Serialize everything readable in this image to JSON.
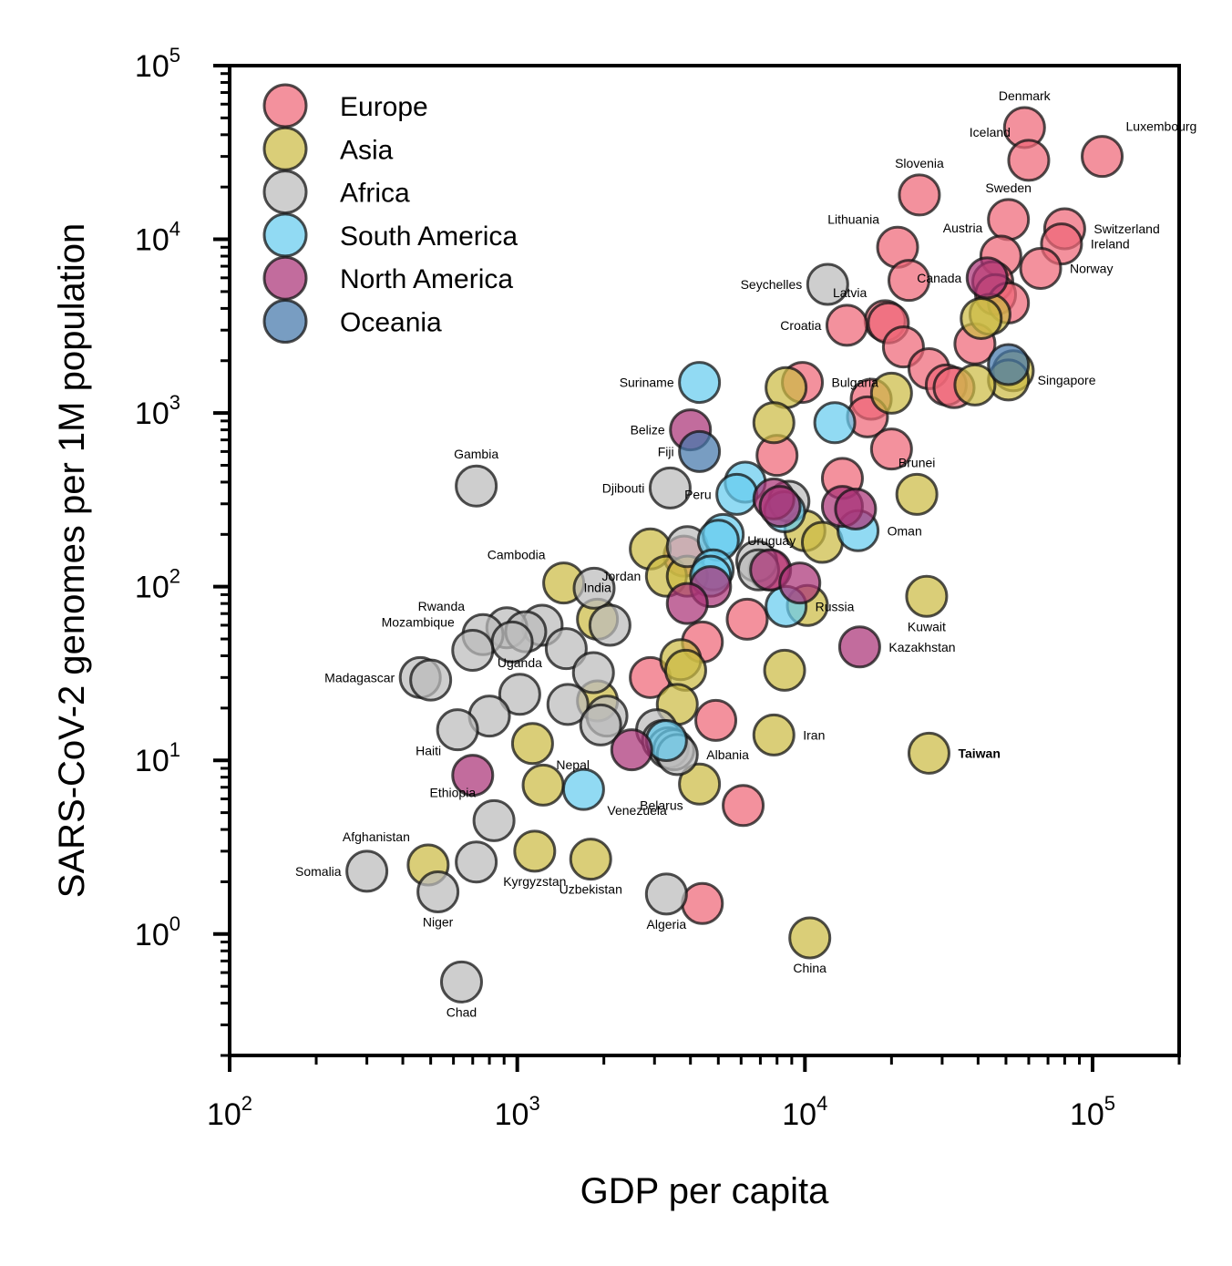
{
  "chart_data": {
    "type": "scatter",
    "xlabel": "GDP per capita",
    "ylabel": "SARS-CoV-2 genomes per 1M population",
    "xscale": "log",
    "yscale": "log",
    "xlim": [
      100,
      200000
    ],
    "ylim": [
      0.2,
      100000
    ],
    "x_major_ticks": [
      {
        "value": 100,
        "base": "10",
        "exp": "2"
      },
      {
        "value": 1000,
        "base": "10",
        "exp": "3"
      },
      {
        "value": 10000,
        "base": "10",
        "exp": "4"
      },
      {
        "value": 100000,
        "base": "10",
        "exp": "5"
      }
    ],
    "y_major_ticks": [
      {
        "value": 1,
        "base": "10",
        "exp": "0"
      },
      {
        "value": 10,
        "base": "10",
        "exp": "1"
      },
      {
        "value": 100,
        "base": "10",
        "exp": "2"
      },
      {
        "value": 1000,
        "base": "10",
        "exp": "3"
      },
      {
        "value": 10000,
        "base": "10",
        "exp": "4"
      },
      {
        "value": 100000,
        "base": "10",
        "exp": "5"
      }
    ],
    "grid": false,
    "legend_position": "top-left",
    "series": [
      {
        "name": "Europe",
        "color": "#EE6677",
        "points": [
          {
            "x": 58000,
            "y": 44000,
            "label": "Denmark",
            "label_pos": "above"
          },
          {
            "x": 108000,
            "y": 30000,
            "label": "Luxembourg",
            "label_pos": "upper-right"
          },
          {
            "x": 60000,
            "y": 28500,
            "label": "Iceland",
            "label_pos": "upper-left"
          },
          {
            "x": 25000,
            "y": 18000,
            "label": "Slovenia",
            "label_pos": "above"
          },
          {
            "x": 51000,
            "y": 13000,
            "label": "Sweden",
            "label_pos": "above"
          },
          {
            "x": 80000,
            "y": 11500,
            "label": "Switzerland",
            "label_pos": "right"
          },
          {
            "x": 78000,
            "y": 9400,
            "label": "Ireland",
            "label_pos": "right"
          },
          {
            "x": 21000,
            "y": 9000,
            "label": "Lithuania",
            "label_pos": "upper-left"
          },
          {
            "x": 48000,
            "y": 8000,
            "label": "Austria",
            "label_pos": "upper-left"
          },
          {
            "x": 66000,
            "y": 6800,
            "label": "Norway",
            "label_pos": "right"
          },
          {
            "x": 23000,
            "y": 5800
          },
          {
            "x": 45000,
            "y": 5700
          },
          {
            "x": 46000,
            "y": 4800
          },
          {
            "x": 51000,
            "y": 4300
          },
          {
            "x": 19000,
            "y": 3400,
            "label": "Latvia",
            "label_pos": "upper-left"
          },
          {
            "x": 19500,
            "y": 3300
          },
          {
            "x": 14000,
            "y": 3200,
            "label": "Croatia",
            "label_pos": "left"
          },
          {
            "x": 22000,
            "y": 2400
          },
          {
            "x": 39000,
            "y": 2500
          },
          {
            "x": 27000,
            "y": 1800
          },
          {
            "x": 31000,
            "y": 1450
          },
          {
            "x": 33000,
            "y": 1400
          },
          {
            "x": 9800,
            "y": 1500,
            "label": "Bulgaria",
            "label_pos": "right"
          },
          {
            "x": 17000,
            "y": 1200
          },
          {
            "x": 16500,
            "y": 950
          },
          {
            "x": 20000,
            "y": 620
          },
          {
            "x": 8000,
            "y": 570
          },
          {
            "x": 13500,
            "y": 420
          },
          {
            "x": 3800,
            "y": 150
          },
          {
            "x": 7500,
            "y": 125
          },
          {
            "x": 4400,
            "y": 48
          },
          {
            "x": 6300,
            "y": 65
          },
          {
            "x": 2900,
            "y": 30
          },
          {
            "x": 4900,
            "y": 17
          },
          {
            "x": 6100,
            "y": 5.5
          },
          {
            "x": 4400,
            "y": 1.5
          }
        ]
      },
      {
        "name": "Asia",
        "color": "#CCBB44",
        "points": [
          {
            "x": 44000,
            "y": 3700
          },
          {
            "x": 41000,
            "y": 3500
          },
          {
            "x": 53000,
            "y": 1750
          },
          {
            "x": 51000,
            "y": 1550,
            "label": "Singapore",
            "label_pos": "right"
          },
          {
            "x": 39000,
            "y": 1450
          },
          {
            "x": 8600,
            "y": 1400
          },
          {
            "x": 20000,
            "y": 1300
          },
          {
            "x": 7800,
            "y": 880
          },
          {
            "x": 24500,
            "y": 340,
            "label": "Brunei",
            "label_pos": "above"
          },
          {
            "x": 10000,
            "y": 210
          },
          {
            "x": 11500,
            "y": 180
          },
          {
            "x": 2900,
            "y": 165
          },
          {
            "x": 1450,
            "y": 105,
            "label": "Cambodia",
            "label_pos": "upper-left"
          },
          {
            "x": 3300,
            "y": 115,
            "label": "Jordan",
            "label_pos": "left"
          },
          {
            "x": 3900,
            "y": 115
          },
          {
            "x": 1900,
            "y": 65,
            "label": "India",
            "label_pos": "above"
          },
          {
            "x": 10200,
            "y": 78
          },
          {
            "x": 26500,
            "y": 88,
            "label": "Kuwait",
            "label_pos": "below"
          },
          {
            "x": 3700,
            "y": 38
          },
          {
            "x": 3850,
            "y": 33
          },
          {
            "x": 8500,
            "y": 33
          },
          {
            "x": 1900,
            "y": 22
          },
          {
            "x": 3600,
            "y": 21
          },
          {
            "x": 1130,
            "y": 12.5,
            "label": "Nepal",
            "label_pos": "lower-right"
          },
          {
            "x": 7800,
            "y": 14,
            "label": "Iran",
            "label_pos": "right"
          },
          {
            "x": 27000,
            "y": 11,
            "label": "Taiwan",
            "label_pos": "right",
            "bold": true
          },
          {
            "x": 1230,
            "y": 7.2
          },
          {
            "x": 4300,
            "y": 7.3,
            "label": "Belarus",
            "label_pos": "lower-left"
          },
          {
            "x": 490,
            "y": 2.5,
            "label": "Afghanistan",
            "label_pos": "upper-left"
          },
          {
            "x": 1150,
            "y": 3.0,
            "label": "Kyrgyzstan",
            "label_pos": "below"
          },
          {
            "x": 1800,
            "y": 2.7,
            "label": "Uzbekistan",
            "label_pos": "below"
          },
          {
            "x": 10400,
            "y": 0.95,
            "label": "China",
            "label_pos": "below"
          }
        ]
      },
      {
        "name": "Africa",
        "color": "#BBBBBB",
        "points": [
          {
            "x": 12000,
            "y": 5500,
            "label": "Seychelles",
            "label_pos": "left"
          },
          {
            "x": 720,
            "y": 380,
            "label": "Gambia",
            "label_pos": "above"
          },
          {
            "x": 3400,
            "y": 370,
            "label": "Djibouti",
            "label_pos": "left"
          },
          {
            "x": 8800,
            "y": 310
          },
          {
            "x": 3900,
            "y": 170
          },
          {
            "x": 6800,
            "y": 140
          },
          {
            "x": 6900,
            "y": 125
          },
          {
            "x": 1850,
            "y": 98
          },
          {
            "x": 2100,
            "y": 60
          },
          {
            "x": 1220,
            "y": 60
          },
          {
            "x": 920,
            "y": 58
          },
          {
            "x": 1070,
            "y": 55
          },
          {
            "x": 760,
            "y": 53,
            "label": "Rwanda",
            "label_pos": "upper-left"
          },
          {
            "x": 960,
            "y": 48
          },
          {
            "x": 700,
            "y": 43,
            "label": "Mozambique",
            "label_pos": "upper-left"
          },
          {
            "x": 1480,
            "y": 44
          },
          {
            "x": 1840,
            "y": 32
          },
          {
            "x": 460,
            "y": 30,
            "label": "Madagascar",
            "label_pos": "left"
          },
          {
            "x": 500,
            "y": 29
          },
          {
            "x": 1020,
            "y": 24,
            "label": "Uganda",
            "label_pos": "above"
          },
          {
            "x": 1500,
            "y": 21
          },
          {
            "x": 2050,
            "y": 18
          },
          {
            "x": 800,
            "y": 18
          },
          {
            "x": 1950,
            "y": 16
          },
          {
            "x": 620,
            "y": 15,
            "label": "Haiti",
            "label_pos": "lower-left"
          },
          {
            "x": 3050,
            "y": 15
          },
          {
            "x": 3200,
            "y": 13
          },
          {
            "x": 3350,
            "y": 11.8
          },
          {
            "x": 3500,
            "y": 11.5
          },
          {
            "x": 3600,
            "y": 10.8,
            "label": "Albania",
            "label_pos": "right"
          },
          {
            "x": 830,
            "y": 4.5,
            "label": "Ethiopia",
            "label_pos": "upper-left"
          },
          {
            "x": 720,
            "y": 2.6
          },
          {
            "x": 300,
            "y": 2.3,
            "label": "Somalia",
            "label_pos": "left"
          },
          {
            "x": 530,
            "y": 1.75,
            "label": "Niger",
            "label_pos": "below"
          },
          {
            "x": 3300,
            "y": 1.7,
            "label": "Algeria",
            "label_pos": "below"
          },
          {
            "x": 640,
            "y": 0.53,
            "label": "Chad",
            "label_pos": "below"
          }
        ]
      },
      {
        "name": "South America",
        "color": "#66CCEE",
        "points": [
          {
            "x": 4300,
            "y": 1500,
            "label": "Suriname",
            "label_pos": "left"
          },
          {
            "x": 12700,
            "y": 880
          },
          {
            "x": 6200,
            "y": 400
          },
          {
            "x": 5800,
            "y": 340,
            "label": "Peru",
            "label_pos": "left"
          },
          {
            "x": 8500,
            "y": 270
          },
          {
            "x": 15300,
            "y": 210,
            "label": "Oman",
            "label_pos": "right"
          },
          {
            "x": 5200,
            "y": 200
          },
          {
            "x": 5000,
            "y": 185,
            "label": "Uruguay",
            "label_pos": "right"
          },
          {
            "x": 4800,
            "y": 125
          },
          {
            "x": 4700,
            "y": 115
          },
          {
            "x": 8600,
            "y": 77,
            "label": "Russia",
            "label_pos": "right"
          },
          {
            "x": 3300,
            "y": 13
          },
          {
            "x": 1700,
            "y": 6.8,
            "label": "Venezuela",
            "label_pos": "lower-right"
          }
        ]
      },
      {
        "name": "North America",
        "color": "#AA3377",
        "points": [
          {
            "x": 43000,
            "y": 6000,
            "label": "Canada",
            "label_pos": "left"
          },
          {
            "x": 4000,
            "y": 800,
            "label": "Belize",
            "label_pos": "left"
          },
          {
            "x": 7800,
            "y": 320
          },
          {
            "x": 8200,
            "y": 290
          },
          {
            "x": 13500,
            "y": 290
          },
          {
            "x": 15000,
            "y": 280
          },
          {
            "x": 7600,
            "y": 125
          },
          {
            "x": 9600,
            "y": 105
          },
          {
            "x": 4700,
            "y": 100
          },
          {
            "x": 3900,
            "y": 80
          },
          {
            "x": 15500,
            "y": 45,
            "label": "Kazakhstan",
            "label_pos": "right"
          },
          {
            "x": 2500,
            "y": 11.5
          },
          {
            "x": 700,
            "y": 8.2
          }
        ]
      },
      {
        "name": "Oceania",
        "color": "#4477AA",
        "points": [
          {
            "x": 51000,
            "y": 1900
          },
          {
            "x": 4300,
            "y": 600,
            "label": "Fiji",
            "label_pos": "left"
          }
        ]
      }
    ]
  }
}
